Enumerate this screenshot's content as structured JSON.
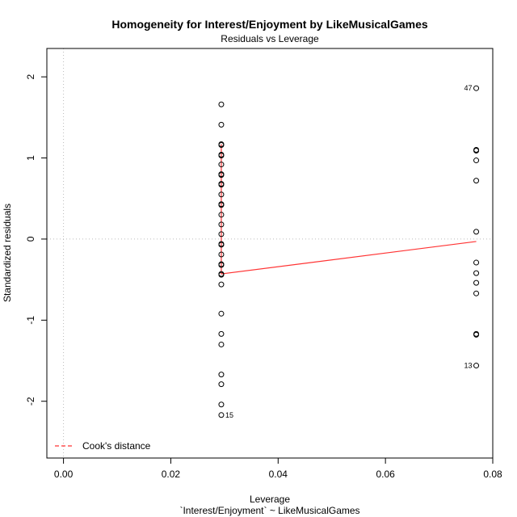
{
  "chart_data": {
    "type": "scatter",
    "title": "Homogeneity for Interest/Enjoyment by LikeMusicalGames",
    "subtitle": "Residuals vs Leverage",
    "xlabel": "Leverage",
    "xlabel2": "`Interest/Enjoyment` ~ LikeMusicalGames",
    "ylabel": "Standardized residuals",
    "xlim": [
      -0.0031,
      0.08
    ],
    "ylim": [
      -2.7,
      2.35
    ],
    "x_ticks": [
      0.0,
      0.02,
      0.04,
      0.06,
      0.08
    ],
    "x_tick_labels": [
      "0.00",
      "0.02",
      "0.04",
      "0.06",
      "0.08"
    ],
    "y_ticks": [
      -2,
      -1,
      0,
      1,
      2
    ],
    "y_tick_labels": [
      "-2",
      "-1",
      "0",
      "1",
      "2"
    ],
    "reference_lines": {
      "horizontal": 0,
      "vertical": 0,
      "style": "dotted",
      "color": "#bbbbbb"
    },
    "points": {
      "color": "#000000",
      "marker": "open-circle",
      "groups": [
        {
          "x": 0.02941,
          "y": [
            1.66,
            1.41,
            1.17,
            1.16,
            1.04,
            1.03,
            0.92,
            0.8,
            0.79,
            0.68,
            0.67,
            0.55,
            0.43,
            0.42,
            0.3,
            0.18,
            0.06,
            -0.06,
            -0.07,
            -0.19,
            -0.31,
            -0.32,
            -0.43,
            -0.44,
            -0.56,
            -0.92,
            -1.17,
            -1.3,
            -1.67,
            -1.79,
            -2.04,
            -2.17
          ]
        },
        {
          "x": 0.07692,
          "y": [
            1.86,
            1.1,
            1.09,
            0.97,
            0.72,
            0.09,
            -0.29,
            -0.42,
            -0.54,
            -0.67,
            -1.17,
            -1.18,
            -1.56
          ]
        }
      ]
    },
    "smoother": {
      "color": "#ff3333",
      "points": [
        {
          "x": 0.02941,
          "y": 1.17
        },
        {
          "x": 0.02941,
          "y": -0.43
        },
        {
          "x": 0.07692,
          "y": -0.03
        }
      ]
    },
    "point_labels": [
      {
        "label": "47",
        "x": 0.07692,
        "y": 1.86,
        "side": "left"
      },
      {
        "label": "13",
        "x": 0.07692,
        "y": -1.56,
        "side": "left"
      },
      {
        "label": "15",
        "x": 0.02941,
        "y": -2.17,
        "side": "right"
      }
    ],
    "legend": {
      "position": "bottom-left",
      "entries": [
        {
          "label": "Cook's distance",
          "color": "#ff3333",
          "style": "dashed"
        }
      ]
    }
  }
}
